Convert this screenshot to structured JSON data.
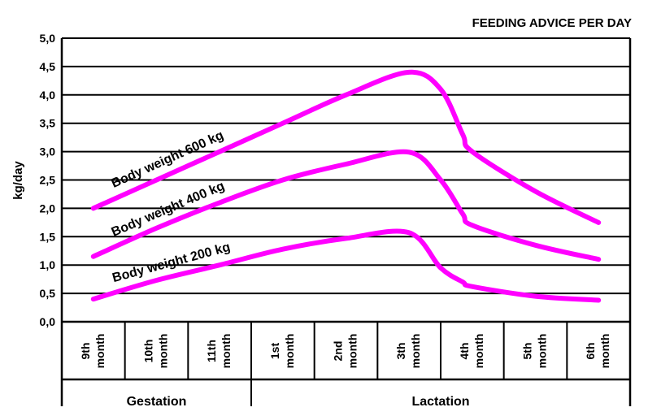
{
  "chart_data": {
    "type": "line",
    "title": "FEEDING ADVICE PER DAY",
    "ylabel": "kg/day",
    "xlabel": "",
    "ylim": [
      0,
      5
    ],
    "yticks": [
      "0,0",
      "0,5",
      "1,0",
      "1,5",
      "2,0",
      "2,5",
      "3,0",
      "3,5",
      "4,0",
      "4,5",
      "5,0"
    ],
    "grid": true,
    "categories": [
      {
        "ordinal": "9th",
        "unit": "month"
      },
      {
        "ordinal": "10th",
        "unit": "month"
      },
      {
        "ordinal": "11th",
        "unit": "month"
      },
      {
        "ordinal": "1st",
        "unit": "month"
      },
      {
        "ordinal": "2nd",
        "unit": "month"
      },
      {
        "ordinal": "3th",
        "unit": "month"
      },
      {
        "ordinal": "4th",
        "unit": "month"
      },
      {
        "ordinal": "5th",
        "unit": "month"
      },
      {
        "ordinal": "6th",
        "unit": "month"
      }
    ],
    "groups": [
      {
        "label": "Gestation",
        "span": [
          0,
          2
        ]
      },
      {
        "label": "Lactation",
        "span": [
          3,
          8
        ]
      }
    ],
    "series": [
      {
        "name": "Body weight 600 kg",
        "color": "#ff00ff",
        "x": [
          0,
          1,
          2,
          3,
          4,
          5,
          5.5,
          5.85,
          6,
          7,
          8
        ],
        "values": [
          2.0,
          2.5,
          3.0,
          3.5,
          4.0,
          4.4,
          4.1,
          3.3,
          3.0,
          2.3,
          1.75
        ]
      },
      {
        "name": "Body weight 400 kg",
        "color": "#ff00ff",
        "x": [
          0,
          1,
          2,
          3,
          4,
          5,
          5.5,
          5.85,
          6,
          7,
          8
        ],
        "values": [
          1.15,
          1.65,
          2.1,
          2.5,
          2.78,
          2.99,
          2.5,
          1.9,
          1.7,
          1.35,
          1.1
        ]
      },
      {
        "name": "Body weight 200 kg",
        "color": "#ff00ff",
        "x": [
          0,
          1,
          2,
          3,
          4,
          5,
          5.5,
          5.85,
          6,
          7,
          8
        ],
        "values": [
          0.4,
          0.73,
          1.0,
          1.28,
          1.47,
          1.57,
          0.95,
          0.7,
          0.62,
          0.45,
          0.38
        ]
      }
    ]
  }
}
